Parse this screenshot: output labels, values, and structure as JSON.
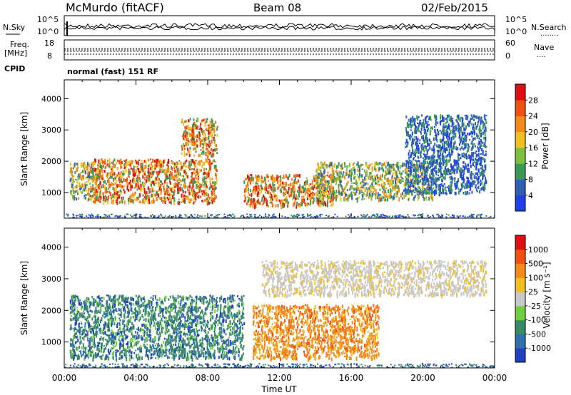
{
  "header": {
    "station": "McMurdo (fitACF)",
    "beam": "Beam 08",
    "date": "02/Feb/2015"
  },
  "noise_panel": {
    "left_label": "N.Sky",
    "right_label": "N.Search",
    "right_dots": "........",
    "left_ticks": [
      "10^5",
      "10^0"
    ],
    "right_ticks": [
      "10^5",
      "10^0"
    ]
  },
  "freq_panel": {
    "left_label_1": "Freq.",
    "left_label_2": "[MHz]",
    "right_label": "Nave",
    "right_dots": "....",
    "left_ticks": [
      "18",
      "8"
    ],
    "right_ticks": [
      "60",
      "0"
    ]
  },
  "cpid": {
    "label": "CPID",
    "value": "normal (fast) 151 RF"
  },
  "colors": {
    "power_scale": [
      "#1f3fe8",
      "#2f5fb5",
      "#3a9a55",
      "#7fbf3f",
      "#f0c020",
      "#f58a18",
      "#f05010",
      "#e01010"
    ],
    "velocity_scale": [
      "#2040c0",
      "#2f6fb0",
      "#3a8a6a",
      "#6fcf3f",
      "#c8c8c8",
      "#f0c020",
      "#f58a18",
      "#f05010",
      "#e01010"
    ]
  },
  "chart_data": [
    {
      "type": "heatmap",
      "quantity": "power",
      "xlabel": "",
      "ylabel": "Slant Range [km]",
      "xlim_hours": [
        0,
        24
      ],
      "ylim": [
        180,
        4600
      ],
      "y_ticks": [
        "1000",
        "2000",
        "3000",
        "4000"
      ],
      "colorbar_label": "Power [dB]",
      "colorbar_ticks": [
        "28",
        "24",
        "20",
        "16",
        "12",
        "8",
        "4"
      ],
      "features": [
        {
          "t0": 0.3,
          "t1": 2.0,
          "r0": 800,
          "r1": 2000,
          "level": "moderate"
        },
        {
          "t0": 1.5,
          "t1": 8.5,
          "r0": 700,
          "r1": 2100,
          "level": "strong"
        },
        {
          "t0": 6.5,
          "t1": 8.5,
          "r0": 2200,
          "r1": 3400,
          "level": "strong"
        },
        {
          "t0": 10.0,
          "t1": 15.0,
          "r0": 600,
          "r1": 1600,
          "level": "strong"
        },
        {
          "t0": 14.0,
          "t1": 20.5,
          "r0": 800,
          "r1": 2000,
          "level": "moderate"
        },
        {
          "t0": 19.0,
          "t1": 23.5,
          "r0": 1000,
          "r1": 3500,
          "level": "weak"
        }
      ]
    },
    {
      "type": "heatmap",
      "quantity": "velocity",
      "xlabel": "Time UT",
      "ylabel": "Slant Range [km]",
      "xlim_hours": [
        0,
        24
      ],
      "x_ticks": [
        "00:00",
        "04:00",
        "08:00",
        "12:00",
        "16:00",
        "20:00",
        "00:00"
      ],
      "ylim": [
        180,
        4600
      ],
      "y_ticks": [
        "1000",
        "2000",
        "3000",
        "4000"
      ],
      "colorbar_label": "Velocity [m s⁻¹]",
      "colorbar_ticks": [
        "1000",
        "500",
        "100",
        "25",
        "-25",
        "-100",
        "-500",
        "-1000"
      ],
      "features": [
        {
          "t0": 0.3,
          "t1": 10.0,
          "r0": 500,
          "r1": 2500,
          "level": "toward (green/blue)"
        },
        {
          "t0": 10.5,
          "t1": 17.5,
          "r0": 500,
          "r1": 2200,
          "level": "away (orange)"
        },
        {
          "t0": 11.0,
          "t1": 23.5,
          "r0": 2500,
          "r1": 3600,
          "level": "ground scatter (grey)"
        }
      ]
    }
  ]
}
